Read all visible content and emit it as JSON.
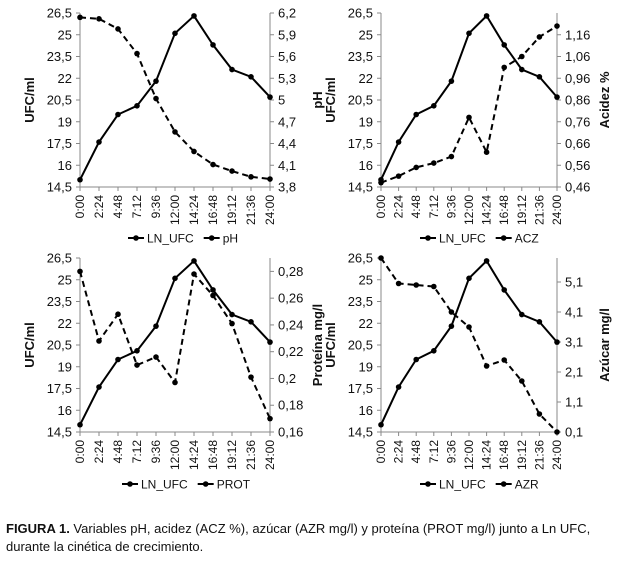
{
  "chart_data": [
    {
      "type": "line",
      "categories": [
        "0:00",
        "2:24",
        "4:48",
        "7:12",
        "9:36",
        "12:00",
        "14:24",
        "16:48",
        "19:12",
        "21:36",
        "24:00"
      ],
      "x": [
        0,
        2,
        4,
        6,
        8,
        10,
        12,
        14,
        16,
        18,
        20
      ],
      "series": [
        {
          "name": "LN_UFC",
          "axis": "left",
          "style": "solid",
          "x": [
            0,
            2,
            4,
            6,
            8,
            10,
            12,
            14,
            16,
            18,
            20
          ],
          "values": [
            15.0,
            17.6,
            19.5,
            20.1,
            21.8,
            25.1,
            26.3,
            24.3,
            22.6,
            22.1,
            20.7
          ]
        },
        {
          "name": "pH",
          "axis": "right",
          "style": "dashed",
          "x": [
            0,
            2,
            4,
            6,
            8,
            10,
            12,
            14,
            16,
            18,
            20
          ],
          "values": [
            6.14,
            6.12,
            5.98,
            5.64,
            5.02,
            4.56,
            4.29,
            4.11,
            4.02,
            3.94,
            3.91
          ]
        }
      ],
      "ylabel": "UFC/ml",
      "y2label": "pH",
      "ylim": [
        14.5,
        26.5
      ],
      "y2lim": [
        3.8,
        6.2
      ],
      "yticks": [
        "14,5",
        "16",
        "17,5",
        "19",
        "20,5",
        "22",
        "23,5",
        "25",
        "26,5"
      ],
      "y2ticks": [
        "3,8",
        "4,1",
        "4,4",
        "4,7",
        "5",
        "5,3",
        "5,6",
        "5,9",
        "6,2"
      ],
      "legend": [
        "LN_UFC",
        "pH"
      ]
    },
    {
      "type": "line",
      "categories": [
        "0:00",
        "2:24",
        "4:48",
        "7:12",
        "9:36",
        "12:00",
        "14:24",
        "16:48",
        "19:12",
        "21:36",
        "24:00"
      ],
      "x": [
        0,
        2,
        4,
        6,
        8,
        10,
        12,
        14,
        16,
        18,
        20
      ],
      "series": [
        {
          "name": "LN_UFC",
          "axis": "left",
          "style": "solid",
          "x": [
            0,
            2,
            4,
            6,
            8,
            10,
            12,
            14,
            16,
            18,
            20
          ],
          "values": [
            15.0,
            17.6,
            19.5,
            20.1,
            21.8,
            25.1,
            26.3,
            24.3,
            22.6,
            22.1,
            20.7
          ]
        },
        {
          "name": "ACZ",
          "axis": "right",
          "style": "dashed",
          "x": [
            0,
            2,
            4,
            6,
            8,
            10,
            12,
            14,
            16,
            18,
            20
          ],
          "values": [
            0.48,
            0.51,
            0.55,
            0.57,
            0.6,
            0.78,
            0.62,
            1.01,
            1.06,
            1.15,
            1.2
          ]
        }
      ],
      "ylabel": "UFC/ml",
      "y2label": "Acidez %",
      "ylim": [
        14.5,
        26.5
      ],
      "y2lim": [
        0.46,
        1.26
      ],
      "yticks": [
        "14,5",
        "16",
        "17,5",
        "19",
        "20,5",
        "22",
        "23,5",
        "25",
        "26,5"
      ],
      "y2ticks": [
        "0,46",
        "0,56",
        "0,66",
        "0,76",
        "0,86",
        "0,96",
        "1,06",
        "1,16"
      ],
      "legend": [
        "LN_UFC",
        "ACZ"
      ]
    },
    {
      "type": "line",
      "categories": [
        "0:00",
        "2:24",
        "4:48",
        "7:12",
        "9:36",
        "12:00",
        "14:24",
        "16:48",
        "19:12",
        "21:36",
        "24:00"
      ],
      "x": [
        0,
        2,
        4,
        6,
        8,
        10,
        12,
        14,
        16,
        18,
        20
      ],
      "series": [
        {
          "name": "LN_UFC",
          "axis": "left",
          "style": "solid",
          "x": [
            0,
            2,
            4,
            6,
            8,
            10,
            12,
            14,
            16,
            18,
            20
          ],
          "values": [
            15.0,
            17.6,
            19.5,
            20.1,
            21.8,
            25.1,
            26.3,
            24.3,
            22.6,
            22.1,
            20.7
          ]
        },
        {
          "name": "PROT",
          "axis": "right",
          "style": "dashed",
          "x": [
            0,
            2,
            4,
            6,
            8,
            10,
            12,
            14,
            16,
            18,
            20
          ],
          "values": [
            0.28,
            0.228,
            0.248,
            0.21,
            0.216,
            0.197,
            0.278,
            0.262,
            0.241,
            0.201,
            0.17
          ]
        }
      ],
      "ylabel": "UFC/ml",
      "y2label": "Proteína mg/l",
      "ylim": [
        14.5,
        26.5
      ],
      "y2lim": [
        0.16,
        0.29
      ],
      "yticks": [
        "14,5",
        "16",
        "17,5",
        "19",
        "20,5",
        "22",
        "23,5",
        "25",
        "26,5"
      ],
      "y2ticks": [
        "0,16",
        "0,18",
        "0,2",
        "0,22",
        "0,24",
        "0,26",
        "0,28"
      ],
      "legend": [
        "LN_UFC",
        "PROT"
      ]
    },
    {
      "type": "line",
      "categories": [
        "0:00",
        "2:24",
        "4:48",
        "7:12",
        "9:36",
        "12:00",
        "14:24",
        "16:48",
        "19:12",
        "21:36",
        "24:00"
      ],
      "x": [
        0,
        2,
        4,
        6,
        8,
        10,
        12,
        14,
        16,
        18,
        20
      ],
      "series": [
        {
          "name": "LN_UFC",
          "axis": "left",
          "style": "solid",
          "x": [
            0,
            2,
            4,
            6,
            8,
            10,
            12,
            14,
            16,
            18,
            20
          ],
          "values": [
            15.0,
            17.6,
            19.5,
            20.1,
            21.8,
            25.1,
            26.3,
            24.3,
            22.6,
            22.1,
            20.7
          ]
        },
        {
          "name": "AZR",
          "axis": "right",
          "style": "dashed",
          "x": [
            0,
            2,
            4,
            6,
            8,
            10,
            12,
            14,
            16,
            18,
            20
          ],
          "values": [
            5.9,
            5.05,
            5.0,
            4.95,
            4.1,
            3.6,
            2.3,
            2.5,
            1.8,
            0.7,
            0.1
          ]
        }
      ],
      "ylabel": "UFC/ml",
      "y2label": "Azúcar mg/l",
      "ylim": [
        14.5,
        26.5
      ],
      "y2lim": [
        0.1,
        5.9
      ],
      "yticks": [
        "14,5",
        "16",
        "17,5",
        "19",
        "20,5",
        "22",
        "23,5",
        "25",
        "26,5"
      ],
      "y2ticks": [
        "0,1",
        "1,1",
        "2,1",
        "3,1",
        "4,1",
        "5,1"
      ],
      "legend": [
        "LN_UFC",
        "AZR"
      ]
    }
  ],
  "caption": {
    "label": "FIGURA 1.",
    "text": " Variables pH, acidez (ACZ %), azúcar (AZR mg/l) y proteína (PROT mg/l) junto a Ln UFC, durante la cinética de crecimiento."
  }
}
